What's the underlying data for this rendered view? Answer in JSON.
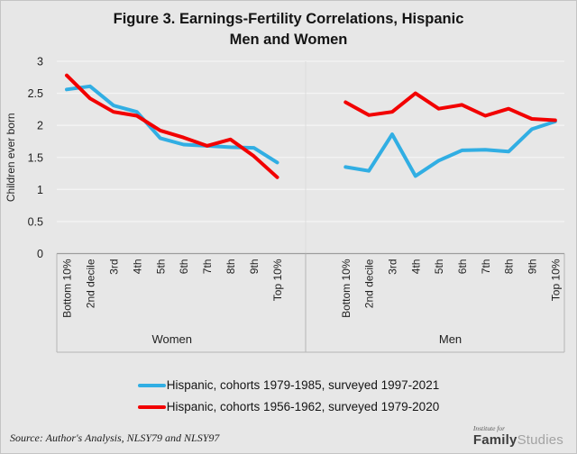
{
  "title": {
    "line1": "Figure 3. Earnings-Fertility Correlations, Hispanic",
    "line2": "Men and Women"
  },
  "colors": {
    "blue": "#31aee3",
    "red": "#f20000",
    "background": "#e7e7e7",
    "gridline": "#f4f4f4",
    "axis": "#9c9c9c",
    "frame": "#b5b5b5",
    "text": "#1f1f1f"
  },
  "legend": {
    "items": [
      {
        "label": "Hispanic, cohorts 1979-1985, surveyed 1997-2021",
        "color_key": "blue"
      },
      {
        "label": "Hispanic, cohorts 1956-1962, surveyed 1979-2020",
        "color_key": "red"
      }
    ]
  },
  "source": "Source: Author's Analysis, NLSY79 and NLSY97",
  "logo": {
    "top": "Institute for",
    "family": "Family",
    "studies": "Studies"
  },
  "chart_data": {
    "type": "line",
    "ylabel": "Children ever born",
    "ylim": [
      0,
      3
    ],
    "yticks": [
      0,
      0.5,
      1,
      1.5,
      2,
      2.5,
      3
    ],
    "grid": true,
    "legend_position": "bottom",
    "categories": [
      "Bottom 10%",
      "2nd decile",
      "3rd",
      "4th",
      "5th",
      "6th",
      "7th",
      "8th",
      "9th",
      "Top 10%"
    ],
    "panels": [
      {
        "label": "Women",
        "series": [
          {
            "name": "Hispanic, cohorts 1979-1985, surveyed 1997-2021",
            "color_key": "blue",
            "values": [
              2.56,
              2.61,
              2.31,
              2.21,
              1.8,
              1.7,
              1.68,
              1.66,
              1.65,
              1.42
            ]
          },
          {
            "name": "Hispanic, cohorts 1956-1962, surveyed 1979-2020",
            "color_key": "red",
            "values": [
              2.78,
              2.42,
              2.21,
              2.15,
              1.92,
              1.81,
              1.68,
              1.78,
              1.52,
              1.19
            ]
          }
        ]
      },
      {
        "label": "Men",
        "series": [
          {
            "name": "Hispanic, cohorts 1979-1985, surveyed 1997-2021",
            "color_key": "blue",
            "values": [
              1.35,
              1.29,
              1.86,
              1.21,
              1.45,
              1.61,
              1.62,
              1.59,
              1.94,
              2.06
            ]
          },
          {
            "name": "Hispanic, cohorts 1956-1962, surveyed 1979-2020",
            "color_key": "red",
            "values": [
              2.36,
              2.16,
              2.21,
              2.5,
              2.26,
              2.32,
              2.15,
              2.26,
              2.1,
              2.08
            ]
          }
        ]
      }
    ]
  }
}
